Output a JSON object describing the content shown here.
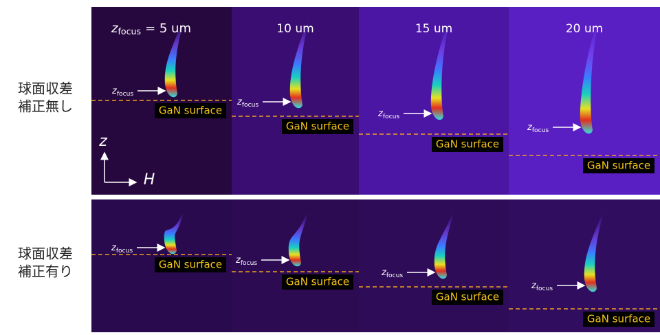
{
  "row_labels": [
    [
      "球面収差",
      "補正無し"
    ],
    [
      "球面収差",
      "補正有り"
    ]
  ],
  "focus_symbol": "z",
  "focus_subscript": "focus",
  "column_labels": [
    "= 5 um",
    "10 um",
    "15 um",
    "20 um"
  ],
  "surface_label": "GaN surface",
  "axis_vertical": "z",
  "axis_horizontal": "H"
}
